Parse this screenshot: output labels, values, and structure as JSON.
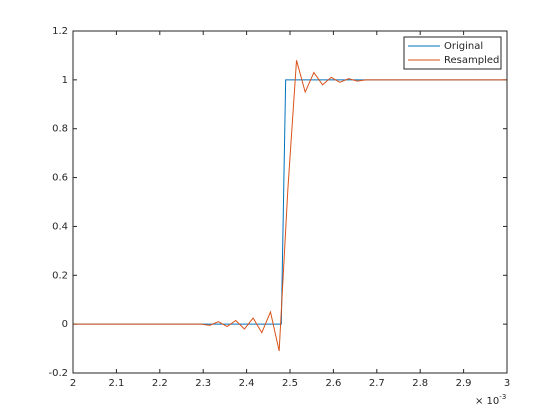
{
  "chart_data": {
    "type": "line",
    "xlim": [
      2,
      3
    ],
    "xticks": [
      2,
      2.1,
      2.2,
      2.3,
      2.4,
      2.5,
      2.6,
      2.7,
      2.8,
      2.9,
      3
    ],
    "ylim": [
      -0.2,
      1.2
    ],
    "yticks": [
      -0.2,
      0,
      0.2,
      0.4,
      0.6,
      0.8,
      1,
      1.2
    ],
    "x_exponent_base": "× 10",
    "x_exponent": "-3",
    "grid": false,
    "legend_position": "upper-right",
    "series": [
      {
        "name": "Original",
        "color": "#0072bd",
        "x": [
          2,
          2.48,
          2.49,
          3
        ],
        "values": [
          0,
          0,
          1,
          1
        ]
      },
      {
        "name": "Resampled",
        "color": "#d95319",
        "x": [
          2,
          2.295,
          2.315,
          2.335,
          2.355,
          2.375,
          2.395,
          2.415,
          2.435,
          2.455,
          2.475,
          2.495,
          2.515,
          2.535,
          2.555,
          2.575,
          2.595,
          2.615,
          2.635,
          2.655,
          2.675,
          2.695,
          2.715,
          3
        ],
        "values": [
          0,
          0,
          -0.005,
          0.01,
          -0.01,
          0.015,
          -0.02,
          0.025,
          -0.035,
          0.05,
          -0.11,
          0.55,
          1.08,
          0.95,
          1.03,
          0.98,
          1.01,
          0.99,
          1.005,
          0.995,
          1,
          1,
          1,
          1
        ]
      }
    ]
  }
}
